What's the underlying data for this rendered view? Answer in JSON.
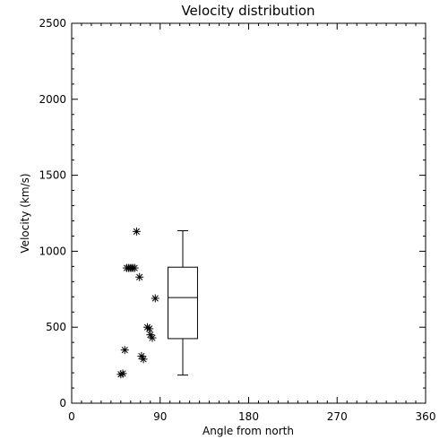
{
  "chart_data": {
    "type": "scatter",
    "title": "Velocity distribution",
    "xlabel": "Angle from north",
    "ylabel": "Velocity (km/s)",
    "xlim": [
      0,
      360
    ],
    "ylim": [
      0,
      2500
    ],
    "xticks": [
      0,
      90,
      180,
      270,
      360
    ],
    "yticks": [
      0,
      500,
      1000,
      1500,
      2000,
      2500
    ],
    "grid": false,
    "legend": "none",
    "marker": "asterisk",
    "points": [
      {
        "x": 50,
        "y": 190
      },
      {
        "x": 52,
        "y": 195
      },
      {
        "x": 54,
        "y": 350
      },
      {
        "x": 56,
        "y": 890
      },
      {
        "x": 58,
        "y": 890
      },
      {
        "x": 60,
        "y": 890
      },
      {
        "x": 62,
        "y": 890
      },
      {
        "x": 64,
        "y": 890
      },
      {
        "x": 66,
        "y": 1130
      },
      {
        "x": 69,
        "y": 830
      },
      {
        "x": 71,
        "y": 310
      },
      {
        "x": 73,
        "y": 290
      },
      {
        "x": 77,
        "y": 500
      },
      {
        "x": 79,
        "y": 490
      },
      {
        "x": 80,
        "y": 450
      },
      {
        "x": 82,
        "y": 430
      },
      {
        "x": 85,
        "y": 690
      }
    ],
    "boxplot": {
      "x_center": 113,
      "x_halfwidth": 15,
      "min": 185,
      "q1": 425,
      "median": 695,
      "q3": 895,
      "max": 1135
    }
  }
}
